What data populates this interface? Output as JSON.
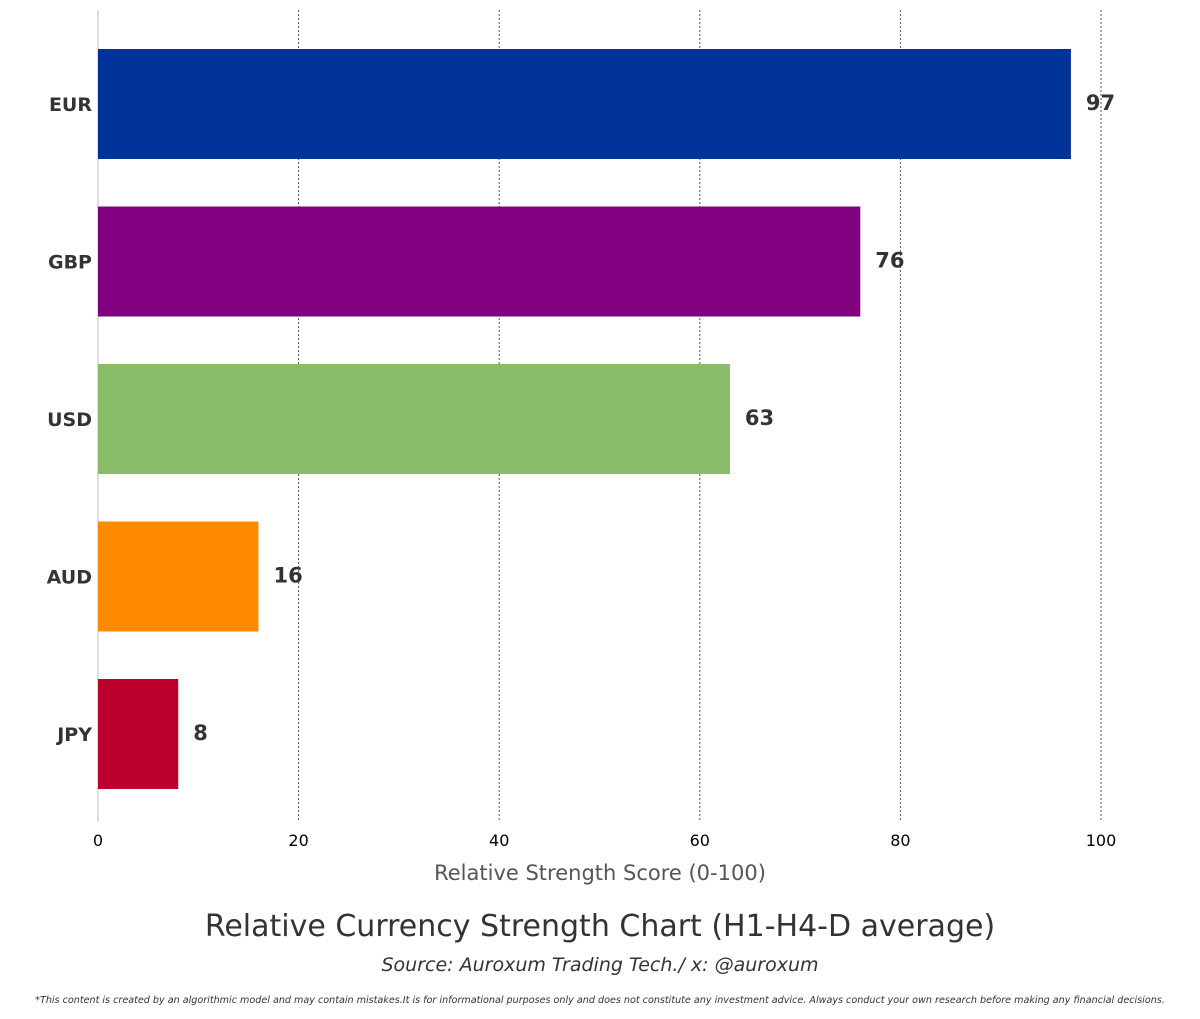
{
  "chart_data": {
    "type": "bar",
    "orientation": "horizontal",
    "title": "Relative Currency Strength Chart (H1-H4-D average)",
    "subtitle": "Source: Auroxum Trading Tech./ x: @auroxum",
    "xlabel": "Relative Strength Score (0-100)",
    "ylabel": "",
    "xlim": [
      0,
      100
    ],
    "xticks": [
      0,
      20,
      40,
      60,
      80,
      100
    ],
    "grid": "vertical dotted",
    "legend": "none",
    "categories": [
      "EUR",
      "GBP",
      "USD",
      "AUD",
      "JPY"
    ],
    "values": [
      97,
      76,
      63,
      16,
      8
    ],
    "colors": [
      "#00339a",
      "#800080",
      "#88bc68",
      "#ff8a00",
      "#bc002d"
    ]
  },
  "footer": {
    "disclaimer": "*This content is created by an algorithmic model and may contain mistakes.It is for informational purposes only and does not constitute any investment advice. Always conduct your own research before making any financial decisions."
  }
}
